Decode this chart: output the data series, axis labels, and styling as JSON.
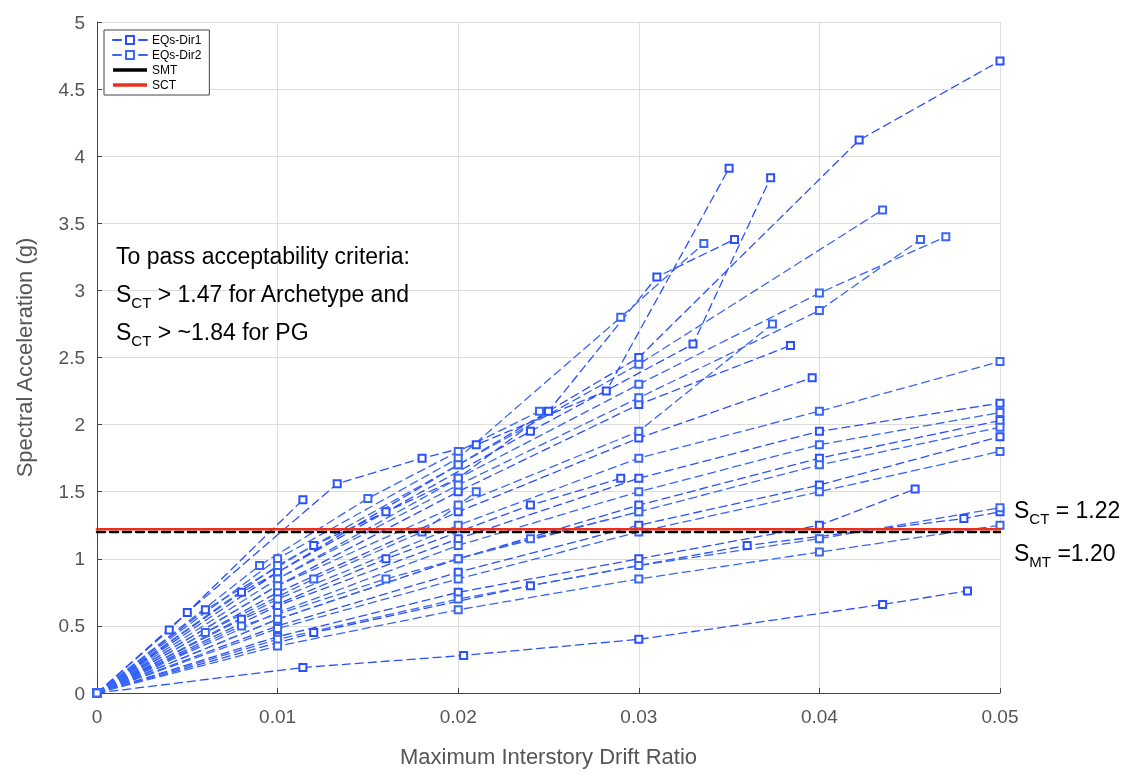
{
  "chart_data": {
    "type": "line",
    "xlabel": "Maximum Interstory Drift Ratio",
    "ylabel": "Spectral Acceleration (g)",
    "xlim": [
      0,
      0.05
    ],
    "xticks": [
      0,
      0.01,
      0.02,
      0.03,
      0.04,
      0.05
    ],
    "ylim": [
      0,
      5
    ],
    "yticks": [
      0,
      0.5,
      1,
      1.5,
      2,
      2.5,
      3,
      3.5,
      4,
      4.5,
      5
    ],
    "grid": true,
    "legend": "top left",
    "annotations": [
      "To pass acceptability criteria:",
      "S$_{CT}$ > 1.47 for Archetype and",
      "S$_{CT}$ > ~1.84 for PG",
      {
        "text": "S$_{CT}$ = 1.22",
        "x": 0.05,
        "y": 1.22
      },
      {
        "text": "S$_{MT}$ =1.20",
        "x": 0.05,
        "y": 1.2
      }
    ],
    "series": [
      {
        "name": "EQs-Dir1",
        "color": "#2a4fff",
        "marker": "square",
        "line_style": "dashed",
        "x": [
          0,
          0.004,
          0.0114,
          null,
          0,
          0.005,
          0.0133,
          0.018,
          0.021,
          0.0282,
          0.035,
          null,
          0,
          0.006,
          0.012,
          0.02,
          0.025,
          0.031,
          0.0353,
          null,
          0,
          0.008,
          0.016,
          0.024,
          0.033,
          0.0373,
          null,
          0,
          0.01,
          0.02,
          0.03,
          0.0422,
          0.05,
          null,
          0,
          0.01,
          0.02,
          0.03,
          0.0384,
          null,
          0,
          0.01,
          0.02,
          0.03,
          0.0396,
          null,
          0,
          0.01,
          0.02,
          0.03,
          0.04,
          0.05,
          null,
          0,
          0.01,
          0.02,
          0.03,
          0.04,
          0.05,
          null,
          0,
          0.01,
          0.02,
          0.03,
          0.04,
          0.05,
          null,
          0,
          0.01,
          0.02,
          0.03,
          0.04,
          0.0453,
          null,
          0,
          0.012,
          0.024,
          0.036,
          0.048,
          0.05,
          null,
          0,
          0.0114,
          0.0203,
          0.03,
          0.0435,
          0.0482,
          null,
          0,
          0.008,
          0.016,
          0.024,
          0.029
        ],
        "values": [
          0,
          0.47,
          1.44,
          null,
          0,
          0.6,
          1.56,
          1.75,
          1.85,
          2.25,
          3.91,
          null,
          0,
          0.62,
          1.1,
          1.6,
          2.1,
          3.1,
          3.38,
          null,
          0,
          0.75,
          1.35,
          1.95,
          2.6,
          3.84,
          null,
          0,
          0.9,
          1.7,
          2.5,
          4.12,
          4.71,
          null,
          0,
          0.8,
          1.5,
          2.15,
          2.59,
          null,
          0,
          0.75,
          1.35,
          1.9,
          2.35,
          null,
          0,
          0.65,
          1.15,
          1.6,
          1.95,
          2.16,
          null,
          0,
          0.55,
          1,
          1.4,
          1.75,
          2.03,
          null,
          0,
          0.5,
          0.9,
          1.25,
          1.55,
          1.91,
          null,
          0,
          0.42,
          0.75,
          1,
          1.25,
          1.52,
          null,
          0,
          0.45,
          0.8,
          1.1,
          1.3,
          1.35,
          null,
          0,
          0.19,
          0.28,
          0.4,
          0.66,
          0.76,
          null,
          0,
          0.55,
          1,
          1.4,
          1.6
        ]
      },
      {
        "name": "EQs-Dir2",
        "color": "#3a66f5",
        "marker": "square",
        "line_style": "dashed",
        "x": [
          0,
          0.009,
          0.015,
          0.02,
          0.0245,
          null,
          0,
          0.01,
          0.02,
          0.029,
          0.0336,
          null,
          0,
          0.01,
          0.02,
          0.03,
          0.0435,
          null,
          0,
          0.01,
          0.02,
          0.03,
          0.04,
          0.047,
          null,
          0,
          0.01,
          0.02,
          0.03,
          0.04,
          0.0456,
          null,
          0,
          0.01,
          0.02,
          0.03,
          0.0374,
          null,
          0,
          0.01,
          0.02,
          0.03,
          0.04,
          0.05,
          null,
          0,
          0.01,
          0.02,
          0.03,
          0.04,
          0.05,
          null,
          0,
          0.01,
          0.02,
          0.03,
          0.04,
          0.05,
          null,
          0,
          0.01,
          0.02,
          0.03,
          0.04,
          0.05,
          null,
          0,
          0.01,
          0.02,
          0.03,
          0.04,
          0.05,
          null,
          0,
          0.01,
          0.02,
          0.03,
          0.04,
          0.05,
          null,
          0,
          0.008,
          0.016,
          0.024,
          0.03,
          null,
          0,
          0.006,
          0.012,
          0.018,
          0.021
        ],
        "values": [
          0,
          0.95,
          1.45,
          1.8,
          2.1,
          null,
          0,
          1,
          1.75,
          2.8,
          3.35,
          null,
          0,
          0.95,
          1.7,
          2.45,
          3.6,
          null,
          0,
          0.85,
          1.6,
          2.3,
          2.98,
          3.4,
          null,
          0,
          0.85,
          1.55,
          2.2,
          2.85,
          3.38,
          null,
          0,
          0.8,
          1.4,
          1.95,
          2.75,
          null,
          0,
          0.7,
          1.25,
          1.75,
          2.1,
          2.47,
          null,
          0,
          0.6,
          1.1,
          1.5,
          1.85,
          2.09,
          null,
          0,
          0.55,
          1,
          1.35,
          1.7,
          1.98,
          null,
          0,
          0.48,
          0.85,
          1.2,
          1.5,
          1.8,
          null,
          0,
          0.4,
          0.7,
          0.95,
          1.15,
          1.38,
          null,
          0,
          0.35,
          0.62,
          0.85,
          1.05,
          1.25,
          null,
          0,
          0.5,
          0.85,
          1.15,
          1.35,
          null,
          0,
          0.45,
          0.85,
          1.2,
          1.5
        ]
      },
      {
        "name": "SMT",
        "color": "#000000",
        "marker": "none",
        "line_style": "dashed",
        "x": [
          0,
          0.05
        ],
        "values": [
          1.2,
          1.2
        ]
      },
      {
        "name": "SCT",
        "color": "#e8301c",
        "marker": "none",
        "line_style": "solid",
        "x": [
          0,
          0.05
        ],
        "values": [
          1.22,
          1.22
        ]
      }
    ]
  }
}
